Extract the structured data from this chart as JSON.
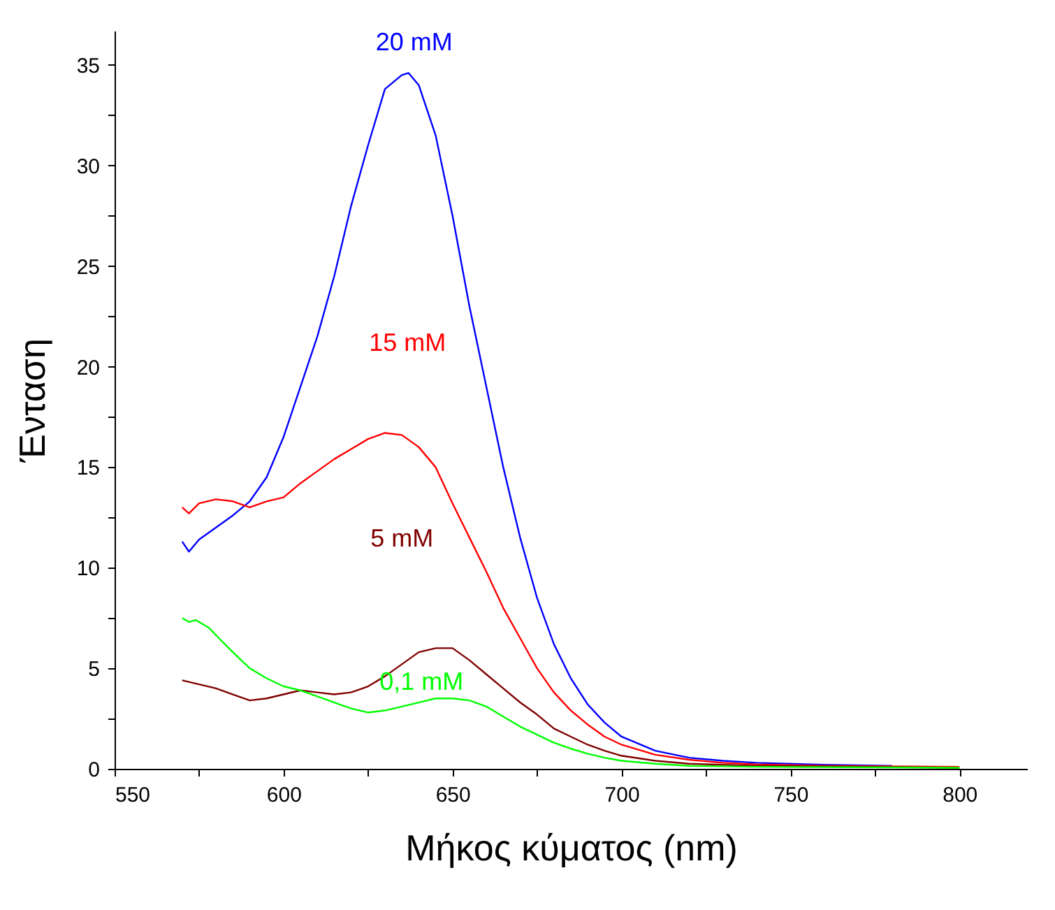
{
  "chart_data": {
    "type": "line",
    "xlabel": "Μήκος κύματος  (nm)",
    "ylabel": "Ένταση",
    "xlim": [
      550,
      820
    ],
    "ylim": [
      0,
      36.7
    ],
    "xticks": [
      550,
      {
        "value": 575,
        "label": null
      },
      600,
      {
        "value": 625,
        "label": null
      },
      650,
      {
        "value": 675,
        "label": null
      },
      700,
      {
        "value": 725,
        "label": null
      },
      750,
      {
        "value": 775,
        "label": null
      },
      800
    ],
    "yticks": [
      0,
      {
        "value": 2.5,
        "label": null
      },
      5,
      {
        "value": 7.5,
        "label": null
      },
      10,
      {
        "value": 12.5,
        "label": null
      },
      15,
      {
        "value": 17.5,
        "label": null
      },
      20,
      {
        "value": 22.5,
        "label": null
      },
      25,
      {
        "value": 27.5,
        "label": null
      },
      30,
      {
        "value": 32.5,
        "label": null
      },
      35
    ],
    "grid": false,
    "legend": false,
    "marker": "none",
    "line_style": "solid",
    "series": [
      {
        "name": "20 mM",
        "color": "#0000ff",
        "x": [
          570,
          572,
          575,
          580,
          585,
          590,
          595,
          600,
          605,
          610,
          615,
          620,
          625,
          630,
          635,
          637,
          640,
          645,
          650,
          655,
          660,
          665,
          670,
          675,
          680,
          685,
          690,
          695,
          700,
          710,
          720,
          730,
          740,
          760,
          780
        ],
        "values": [
          11.3,
          10.8,
          11.4,
          12.0,
          12.6,
          13.3,
          14.5,
          16.5,
          19,
          21.5,
          24.5,
          28,
          31,
          33.8,
          34.5,
          34.6,
          34,
          31.5,
          27.5,
          23,
          19,
          15,
          11.5,
          8.5,
          6.2,
          4.5,
          3.2,
          2.3,
          1.6,
          0.9,
          0.55,
          0.4,
          0.3,
          0.2,
          0.15
        ]
      },
      {
        "name": "15 mM",
        "color": "#ff0000",
        "x": [
          570,
          572,
          575,
          580,
          585,
          590,
          595,
          600,
          605,
          610,
          615,
          620,
          625,
          630,
          635,
          640,
          645,
          650,
          655,
          660,
          665,
          670,
          675,
          680,
          685,
          690,
          695,
          700,
          710,
          720,
          730,
          740,
          760,
          800
        ],
        "values": [
          13.0,
          12.7,
          13.2,
          13.4,
          13.3,
          13.0,
          13.3,
          13.5,
          14.2,
          14.8,
          15.4,
          15.9,
          16.4,
          16.7,
          16.6,
          16.0,
          15.0,
          13.2,
          11.5,
          9.8,
          8.0,
          6.5,
          5.0,
          3.8,
          2.9,
          2.2,
          1.6,
          1.2,
          0.7,
          0.45,
          0.3,
          0.22,
          0.15,
          0.1
        ]
      },
      {
        "name": "5 mM",
        "color": "#800000",
        "x": [
          570,
          575,
          580,
          585,
          590,
          595,
          600,
          605,
          610,
          615,
          620,
          625,
          630,
          635,
          640,
          645,
          650,
          655,
          660,
          665,
          670,
          675,
          680,
          685,
          690,
          695,
          700,
          710,
          720,
          740,
          800
        ],
        "values": [
          4.4,
          4.2,
          4.0,
          3.7,
          3.4,
          3.5,
          3.7,
          3.9,
          3.8,
          3.7,
          3.8,
          4.1,
          4.6,
          5.2,
          5.8,
          6.0,
          6.0,
          5.4,
          4.7,
          4.0,
          3.3,
          2.7,
          2.0,
          1.6,
          1.2,
          0.9,
          0.65,
          0.4,
          0.25,
          0.15,
          0.05
        ]
      },
      {
        "name": "0,1 mM",
        "color": "#00ff00",
        "x": [
          570,
          572,
          574,
          578,
          582,
          585,
          590,
          595,
          600,
          605,
          610,
          615,
          620,
          625,
          630,
          635,
          640,
          645,
          650,
          655,
          660,
          665,
          670,
          675,
          680,
          685,
          690,
          695,
          700,
          710,
          720,
          740,
          800
        ],
        "values": [
          7.5,
          7.3,
          7.4,
          7.0,
          6.3,
          5.8,
          5.0,
          4.5,
          4.1,
          3.9,
          3.6,
          3.3,
          3.0,
          2.8,
          2.9,
          3.1,
          3.3,
          3.5,
          3.5,
          3.4,
          3.1,
          2.6,
          2.1,
          1.7,
          1.3,
          1.0,
          0.75,
          0.55,
          0.4,
          0.25,
          0.15,
          0.1,
          0.05
        ]
      }
    ]
  }
}
